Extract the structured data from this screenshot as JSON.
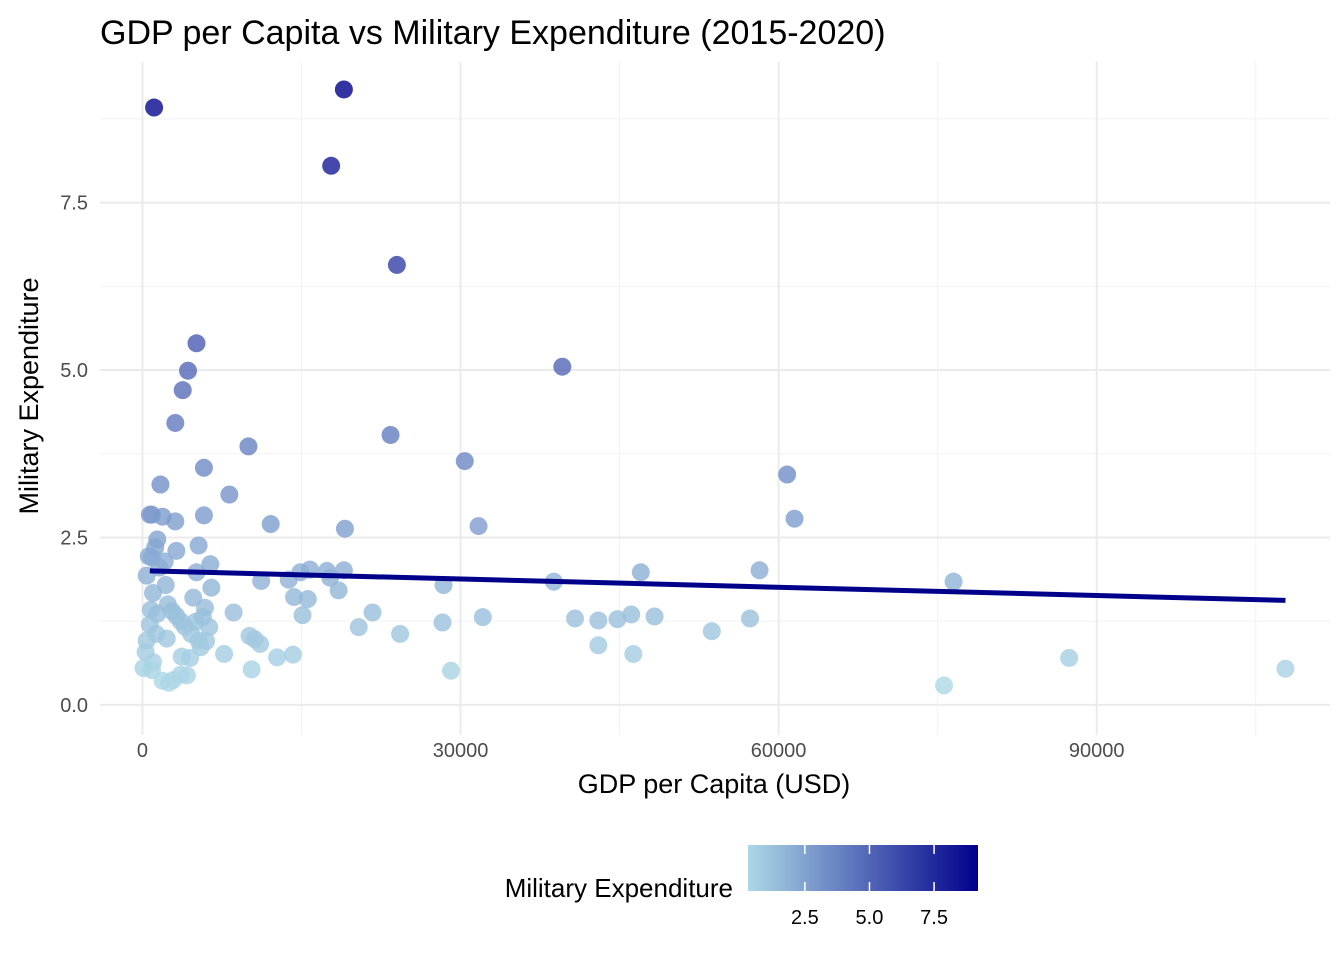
{
  "chart_data": {
    "type": "scatter",
    "title": "GDP per Capita vs Military Expenditure (2015-2020)",
    "xlabel": "GDP per Capita (USD)",
    "ylabel": "Military Expenditure",
    "xlim": [
      -4000,
      112000
    ],
    "ylim": [
      -0.45,
      9.6
    ],
    "x_ticks": [
      0,
      30000,
      60000,
      90000
    ],
    "x_tick_labels": [
      "0",
      "30000",
      "60000",
      "90000"
    ],
    "y_ticks": [
      0,
      2.5,
      5,
      7.5
    ],
    "y_tick_labels": [
      "0.0",
      "2.5",
      "5.0",
      "7.5"
    ],
    "grid": true,
    "color_low": "#add8e6",
    "color_high": "#00008b",
    "trend_color": "#00008b",
    "trend_line": {
      "x": [
        700,
        107800
      ],
      "y": [
        2.0,
        1.56
      ]
    },
    "legend": {
      "title": "Military Expenditure",
      "position": "bottom",
      "ticks": [
        "2.5",
        "5.0",
        "7.5"
      ],
      "tick_values": [
        2.5,
        5.0,
        7.5
      ],
      "range": [
        0.3,
        9.2
      ]
    },
    "points": [
      {
        "x": 1100,
        "y": 8.92
      },
      {
        "x": 19000,
        "y": 9.19
      },
      {
        "x": 17800,
        "y": 8.05
      },
      {
        "x": 24000,
        "y": 6.57
      },
      {
        "x": 5100,
        "y": 5.4
      },
      {
        "x": 4300,
        "y": 4.99
      },
      {
        "x": 3800,
        "y": 4.7
      },
      {
        "x": 39600,
        "y": 5.05
      },
      {
        "x": 3100,
        "y": 4.21
      },
      {
        "x": 23400,
        "y": 4.03
      },
      {
        "x": 10000,
        "y": 3.86
      },
      {
        "x": 30400,
        "y": 3.64
      },
      {
        "x": 5800,
        "y": 3.54
      },
      {
        "x": 60800,
        "y": 3.44
      },
      {
        "x": 1700,
        "y": 3.29
      },
      {
        "x": 8200,
        "y": 3.14
      },
      {
        "x": 700,
        "y": 2.84
      },
      {
        "x": 900,
        "y": 2.84
      },
      {
        "x": 1900,
        "y": 2.81
      },
      {
        "x": 5800,
        "y": 2.83
      },
      {
        "x": 61500,
        "y": 2.78
      },
      {
        "x": 3100,
        "y": 2.74
      },
      {
        "x": 12100,
        "y": 2.7
      },
      {
        "x": 31700,
        "y": 2.67
      },
      {
        "x": 19100,
        "y": 2.63
      },
      {
        "x": 1400,
        "y": 2.47
      },
      {
        "x": 1200,
        "y": 2.35
      },
      {
        "x": 5300,
        "y": 2.38
      },
      {
        "x": 3200,
        "y": 2.3
      },
      {
        "x": 600,
        "y": 2.22
      },
      {
        "x": 900,
        "y": 2.2
      },
      {
        "x": 2100,
        "y": 2.14
      },
      {
        "x": 6400,
        "y": 2.1
      },
      {
        "x": 400,
        "y": 1.93
      },
      {
        "x": 1600,
        "y": 2.05
      },
      {
        "x": 5100,
        "y": 1.98
      },
      {
        "x": 15800,
        "y": 2.02
      },
      {
        "x": 17400,
        "y": 2.0
      },
      {
        "x": 19000,
        "y": 2.01
      },
      {
        "x": 14900,
        "y": 1.98
      },
      {
        "x": 47000,
        "y": 1.98
      },
      {
        "x": 58200,
        "y": 2.01
      },
      {
        "x": 17700,
        "y": 1.9
      },
      {
        "x": 13800,
        "y": 1.87
      },
      {
        "x": 11200,
        "y": 1.85
      },
      {
        "x": 38800,
        "y": 1.84
      },
      {
        "x": 76500,
        "y": 1.84
      },
      {
        "x": 28400,
        "y": 1.79
      },
      {
        "x": 2200,
        "y": 1.79
      },
      {
        "x": 6500,
        "y": 1.75
      },
      {
        "x": 18500,
        "y": 1.71
      },
      {
        "x": 1000,
        "y": 1.67
      },
      {
        "x": 4800,
        "y": 1.6
      },
      {
        "x": 14300,
        "y": 1.61
      },
      {
        "x": 15600,
        "y": 1.58
      },
      {
        "x": 2400,
        "y": 1.5
      },
      {
        "x": 5900,
        "y": 1.45
      },
      {
        "x": 800,
        "y": 1.42
      },
      {
        "x": 1400,
        "y": 1.36
      },
      {
        "x": 2800,
        "y": 1.4
      },
      {
        "x": 8600,
        "y": 1.38
      },
      {
        "x": 21700,
        "y": 1.38
      },
      {
        "x": 15100,
        "y": 1.34
      },
      {
        "x": 32100,
        "y": 1.31
      },
      {
        "x": 46100,
        "y": 1.35
      },
      {
        "x": 48300,
        "y": 1.32
      },
      {
        "x": 57300,
        "y": 1.29
      },
      {
        "x": 3200,
        "y": 1.33
      },
      {
        "x": 5700,
        "y": 1.31
      },
      {
        "x": 44800,
        "y": 1.28
      },
      {
        "x": 43000,
        "y": 1.26
      },
      {
        "x": 40800,
        "y": 1.29
      },
      {
        "x": 700,
        "y": 1.2
      },
      {
        "x": 3600,
        "y": 1.25
      },
      {
        "x": 5000,
        "y": 1.24
      },
      {
        "x": 28300,
        "y": 1.23
      },
      {
        "x": 4000,
        "y": 1.17
      },
      {
        "x": 6300,
        "y": 1.16
      },
      {
        "x": 20400,
        "y": 1.16
      },
      {
        "x": 53700,
        "y": 1.1
      },
      {
        "x": 24300,
        "y": 1.06
      },
      {
        "x": 1300,
        "y": 1.06
      },
      {
        "x": 10100,
        "y": 1.03
      },
      {
        "x": 4600,
        "y": 1.06
      },
      {
        "x": 2300,
        "y": 0.99
      },
      {
        "x": 10600,
        "y": 0.98
      },
      {
        "x": 5300,
        "y": 0.96
      },
      {
        "x": 6000,
        "y": 0.95
      },
      {
        "x": 400,
        "y": 0.96
      },
      {
        "x": 11100,
        "y": 0.91
      },
      {
        "x": 43000,
        "y": 0.89
      },
      {
        "x": 5500,
        "y": 0.86
      },
      {
        "x": 300,
        "y": 0.79
      },
      {
        "x": 7700,
        "y": 0.76
      },
      {
        "x": 14200,
        "y": 0.75
      },
      {
        "x": 12700,
        "y": 0.71
      },
      {
        "x": 46300,
        "y": 0.76
      },
      {
        "x": 87400,
        "y": 0.7
      },
      {
        "x": 3700,
        "y": 0.72
      },
      {
        "x": 4500,
        "y": 0.7
      },
      {
        "x": 1000,
        "y": 0.64
      },
      {
        "x": 100,
        "y": 0.55
      },
      {
        "x": 900,
        "y": 0.52
      },
      {
        "x": 10300,
        "y": 0.53
      },
      {
        "x": 29100,
        "y": 0.51
      },
      {
        "x": 107800,
        "y": 0.54
      },
      {
        "x": 3600,
        "y": 0.45
      },
      {
        "x": 4200,
        "y": 0.44
      },
      {
        "x": 1900,
        "y": 0.36
      },
      {
        "x": 2500,
        "y": 0.33
      },
      {
        "x": 2900,
        "y": 0.37
      },
      {
        "x": 75600,
        "y": 0.29
      }
    ]
  }
}
